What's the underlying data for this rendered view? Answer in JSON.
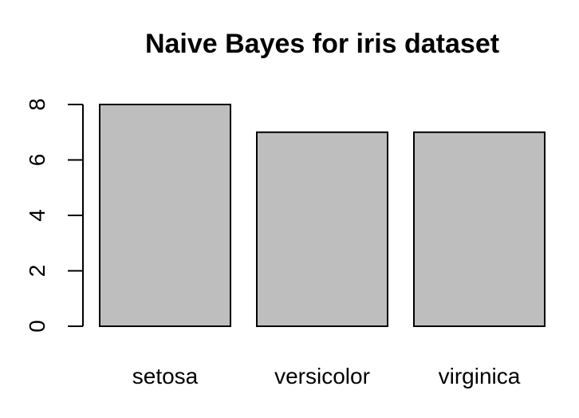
{
  "chart_data": {
    "type": "bar",
    "title": "Naive Bayes for iris dataset",
    "xlabel": "",
    "ylabel": "",
    "categories": [
      "setosa",
      "versicolor",
      "virginica"
    ],
    "values": [
      8,
      7,
      7
    ],
    "ylim": [
      0,
      8
    ],
    "y_ticks": [
      "0",
      "2",
      "4",
      "6",
      "8"
    ],
    "bar_color": "#bebebe",
    "border_color": "#000000",
    "grid": false,
    "legend": "none"
  }
}
